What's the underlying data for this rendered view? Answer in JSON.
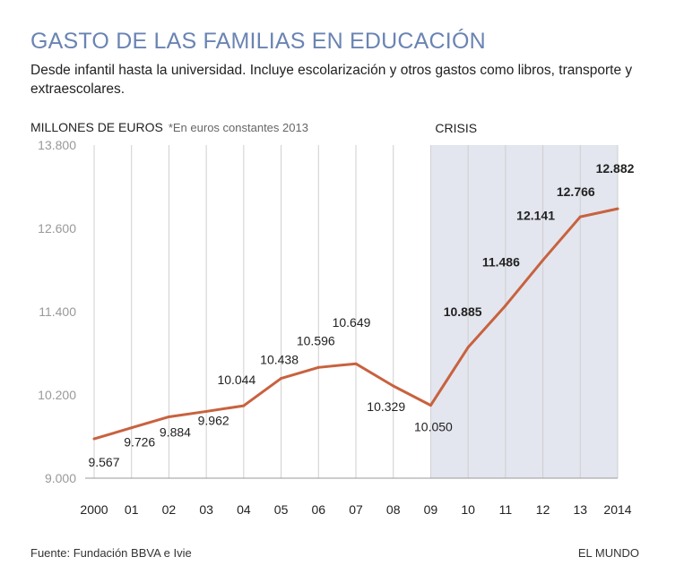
{
  "title": "GASTO DE LAS FAMILIAS EN EDUCACIÓN",
  "subtitle": "Desde infantil hasta la universidad. Incluye escolarización y otros gastos como libros, transporte y extraescolares.",
  "source": "Fuente: Fundación BBVA e Ivie",
  "brand": "EL MUNDO",
  "chart_data": {
    "type": "line",
    "ylabel": "MILLONES DE EUROS",
    "ylabel_note": "*En euros constantes 2013",
    "categories": [
      "2000",
      "01",
      "02",
      "03",
      "04",
      "05",
      "06",
      "07",
      "08",
      "09",
      "10",
      "11",
      "12",
      "13",
      "2014"
    ],
    "values": [
      9567,
      9726,
      9884,
      9962,
      10044,
      10438,
      10596,
      10649,
      10329,
      10050,
      10885,
      11486,
      12141,
      12766,
      12882
    ],
    "data_labels": [
      "9.567",
      "9.726",
      "9.884",
      "9.962",
      "10.044",
      "10.438",
      "10.596",
      "10.649",
      "10.329",
      "10.050",
      "10.885",
      "11.486",
      "12.141",
      "12.766",
      "12.882"
    ],
    "ylim": [
      9000,
      13800
    ],
    "yticks": [
      9000,
      10200,
      11400,
      12600,
      13800
    ],
    "ytick_labels": [
      "9.000",
      "10.200",
      "11.400",
      "12.600",
      "13.800"
    ],
    "grid": "vertical",
    "line_color": "#c8623f",
    "annotation": {
      "label": "CRISIS",
      "from": "09",
      "to": "2014",
      "color": "#e3e6ef"
    }
  }
}
